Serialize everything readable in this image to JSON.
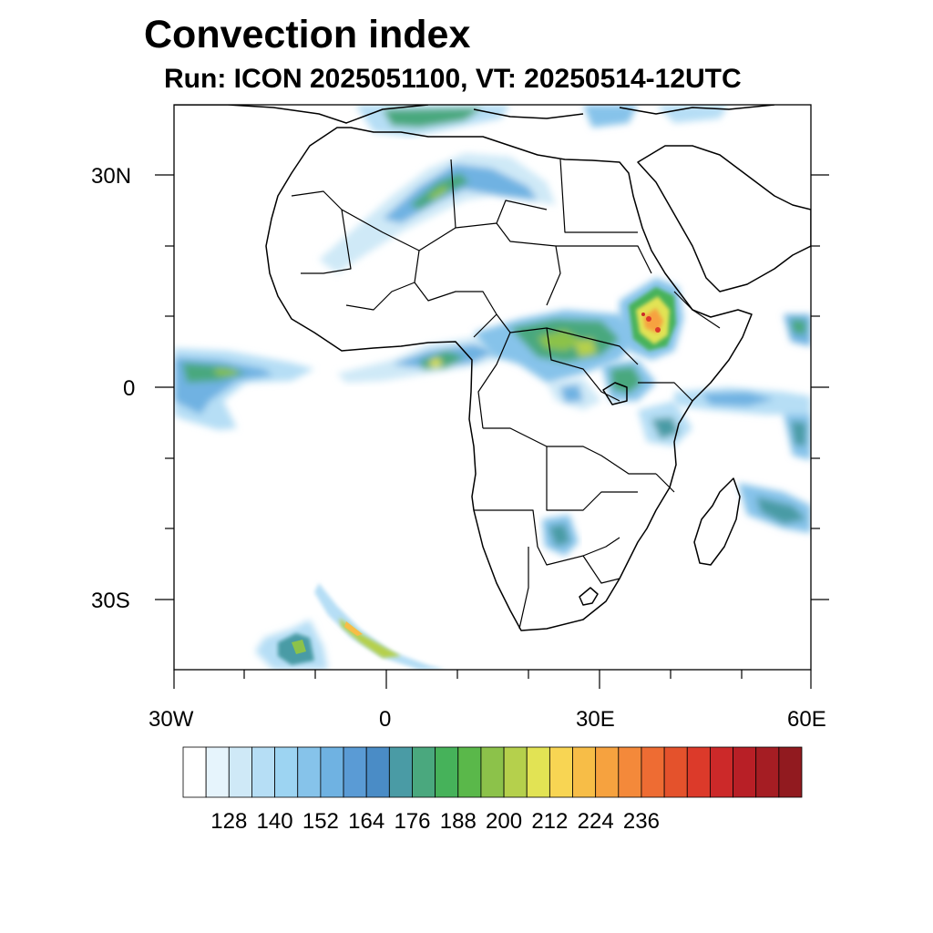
{
  "title": "Convection index",
  "subtitle": "Run: ICON 2025051100,  VT: 20250514-12UTC",
  "map": {
    "region": "Africa",
    "projection": "lat-lon",
    "lon_range_deg": [
      -30,
      60
    ],
    "lat_range_deg": [
      -40,
      40
    ],
    "y_tick_labels": [
      "30N",
      "0",
      "30S"
    ],
    "x_tick_labels": [
      "30W",
      "0",
      "30E",
      "60E"
    ]
  },
  "colorbar": {
    "tick_labels": [
      "128",
      "140",
      "152",
      "164",
      "176",
      "188",
      "200",
      "212",
      "224",
      "236"
    ],
    "colors": [
      "#ffffff",
      "#e6f4fc",
      "#cfe9f7",
      "#b6def5",
      "#9dd4f2",
      "#86c3ea",
      "#6fb2e2",
      "#5a9bd5",
      "#4a8cc6",
      "#4a9ba5",
      "#4aa87e",
      "#46b25a",
      "#5ab84a",
      "#8cc24a",
      "#b5d04c",
      "#e2e354",
      "#f8d553",
      "#f7bd47",
      "#f6a23f",
      "#f4893a",
      "#ee6c33",
      "#e4522c",
      "#dc3a2a",
      "#cc2929",
      "#b81f26",
      "#a51d23",
      "#911a1f"
    ]
  }
}
